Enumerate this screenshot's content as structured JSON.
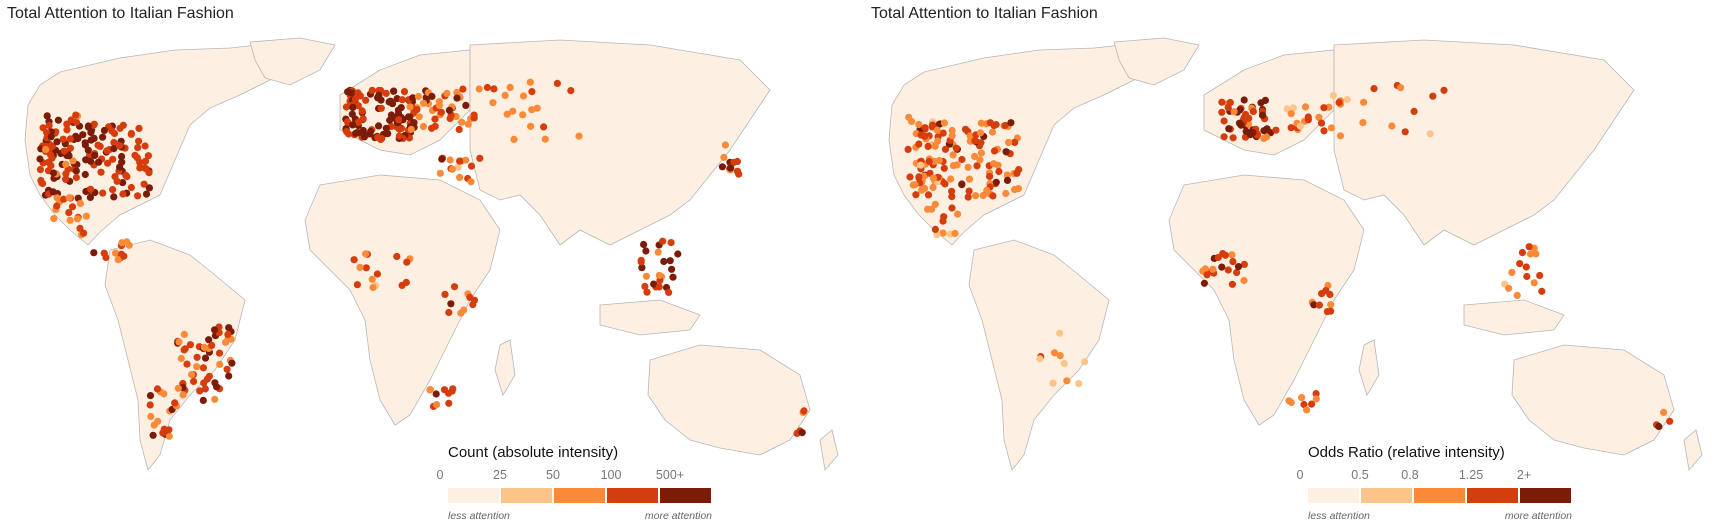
{
  "colors": {
    "land": "#fdf0e2",
    "coast": "#b7b7b7",
    "bins": [
      "#fef0e1",
      "#fdc489",
      "#fb8a38",
      "#d63d0d",
      "#7b1c08"
    ]
  },
  "panels": [
    {
      "title": "Total Attention to Italian Fashion",
      "legend": {
        "title": "Count (absolute intensity)",
        "ticks": [
          "0",
          "25",
          "50",
          "100",
          "500+"
        ],
        "low_label": "less attention",
        "high_label": "more attention"
      }
    },
    {
      "title": "Total Attention to Italian Fashion",
      "legend": {
        "title": "Odds Ratio (relative intensity)",
        "ticks": [
          "0",
          "0.5",
          "0.8",
          "1.25",
          "2+"
        ],
        "low_label": "less attention",
        "high_label": "more attention"
      }
    }
  ]
}
